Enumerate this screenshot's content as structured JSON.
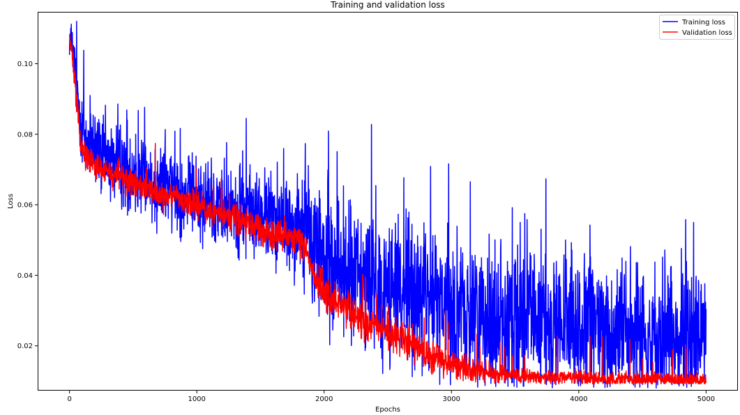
{
  "chart_data": {
    "type": "line",
    "title": "Training and validation loss",
    "xlabel": "Epochs",
    "ylabel": "Loss",
    "xlim": [
      -250,
      5250
    ],
    "ylim": [
      0.0073,
      0.1147
    ],
    "xticks": [
      0,
      1000,
      2000,
      3000,
      4000,
      5000
    ],
    "yticks": [
      0.02,
      0.04,
      0.06,
      0.08,
      0.1
    ],
    "ytick_labels": [
      "0.02",
      "0.04",
      "0.06",
      "0.08",
      "0.10"
    ],
    "grid": false,
    "legend_position": "top-right",
    "n_epochs": 5000,
    "series": [
      {
        "name": "Training loss",
        "color": "#0000ff",
        "x": [
          0,
          20,
          40,
          60,
          80,
          100,
          150,
          200,
          300,
          400,
          500,
          600,
          700,
          800,
          900,
          1000,
          1100,
          1200,
          1300,
          1400,
          1500,
          1600,
          1700,
          1800,
          1850,
          1900,
          1950,
          2000,
          2100,
          2200,
          2300,
          2400,
          2500,
          2600,
          2700,
          2800,
          2900,
          3000,
          3200,
          3400,
          3600,
          3800,
          4000,
          4200,
          4400,
          4600,
          4800,
          5000
        ],
        "center": [
          0.108,
          0.104,
          0.099,
          0.092,
          0.086,
          0.08,
          0.077,
          0.075,
          0.073,
          0.071,
          0.069,
          0.067,
          0.066,
          0.065,
          0.063,
          0.062,
          0.061,
          0.06,
          0.059,
          0.058,
          0.057,
          0.056,
          0.055,
          0.054,
          0.053,
          0.05,
          0.047,
          0.045,
          0.043,
          0.041,
          0.039,
          0.038,
          0.037,
          0.036,
          0.035,
          0.034,
          0.033,
          0.031,
          0.029,
          0.028,
          0.027,
          0.026,
          0.025,
          0.025,
          0.024,
          0.024,
          0.023,
          0.023
        ],
        "spread": [
          0.003,
          0.004,
          0.005,
          0.006,
          0.006,
          0.006,
          0.006,
          0.006,
          0.006,
          0.006,
          0.006,
          0.006,
          0.006,
          0.006,
          0.006,
          0.006,
          0.006,
          0.006,
          0.006,
          0.006,
          0.006,
          0.006,
          0.007,
          0.007,
          0.008,
          0.009,
          0.01,
          0.01,
          0.01,
          0.01,
          0.01,
          0.01,
          0.01,
          0.01,
          0.01,
          0.01,
          0.01,
          0.01,
          0.01,
          0.01,
          0.01,
          0.01,
          0.01,
          0.01,
          0.01,
          0.01,
          0.01,
          0.01
        ],
        "min": 0.008,
        "max": 0.112
      },
      {
        "name": "Validation loss",
        "color": "#ff0000",
        "x": [
          0,
          20,
          40,
          60,
          80,
          100,
          150,
          200,
          300,
          400,
          500,
          600,
          700,
          800,
          900,
          1000,
          1100,
          1200,
          1300,
          1400,
          1500,
          1600,
          1700,
          1800,
          1850,
          1900,
          1950,
          2000,
          2100,
          2200,
          2300,
          2400,
          2500,
          2600,
          2700,
          2800,
          2900,
          3000,
          3200,
          3400,
          3600,
          3800,
          4000,
          4200,
          4400,
          4600,
          4800,
          5000
        ],
        "center": [
          0.108,
          0.102,
          0.096,
          0.088,
          0.082,
          0.076,
          0.073,
          0.071,
          0.069,
          0.068,
          0.066,
          0.065,
          0.063,
          0.062,
          0.061,
          0.06,
          0.058,
          0.057,
          0.056,
          0.054,
          0.053,
          0.052,
          0.051,
          0.05,
          0.048,
          0.043,
          0.038,
          0.035,
          0.032,
          0.03,
          0.027,
          0.026,
          0.024,
          0.022,
          0.02,
          0.018,
          0.016,
          0.0145,
          0.013,
          0.012,
          0.0115,
          0.011,
          0.011,
          0.0105,
          0.0105,
          0.0105,
          0.0102,
          0.0102
        ],
        "spread": [
          0.001,
          0.0015,
          0.0018,
          0.002,
          0.002,
          0.002,
          0.002,
          0.002,
          0.002,
          0.002,
          0.002,
          0.002,
          0.002,
          0.002,
          0.002,
          0.002,
          0.002,
          0.002,
          0.002,
          0.002,
          0.002,
          0.002,
          0.002,
          0.002,
          0.002,
          0.002,
          0.0025,
          0.0025,
          0.0025,
          0.0025,
          0.0025,
          0.0025,
          0.0025,
          0.0025,
          0.0025,
          0.002,
          0.002,
          0.002,
          0.0015,
          0.0012,
          0.001,
          0.001,
          0.001,
          0.001,
          0.001,
          0.001,
          0.001,
          0.001
        ],
        "min": 0.0092,
        "max": 0.109
      }
    ]
  }
}
